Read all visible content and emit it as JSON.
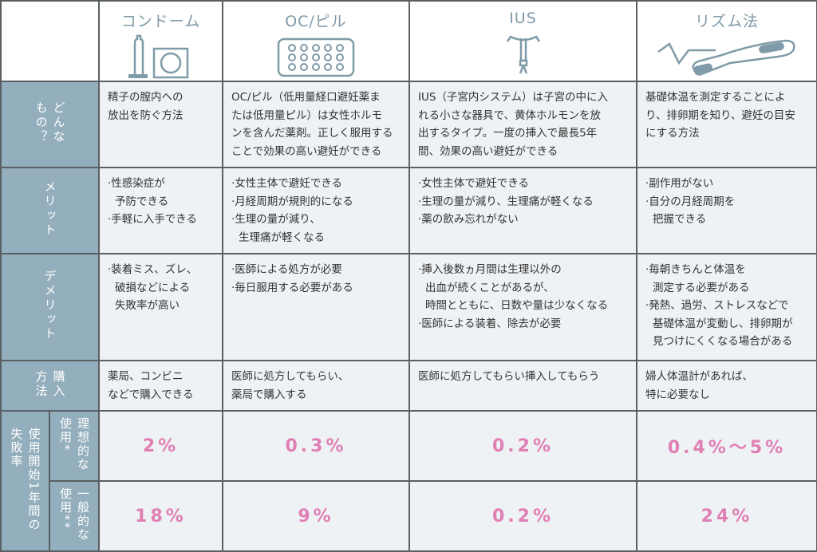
{
  "methods": [
    {
      "name": "コンドーム",
      "icon": "condom-icon"
    },
    {
      "name": "OC/ピル",
      "icon": "pill-pack-icon"
    },
    {
      "name": "IUS",
      "icon": "ius-device-icon"
    },
    {
      "name": "リズム法",
      "icon": "thermometer-icon"
    }
  ],
  "rows": {
    "what": {
      "label": [
        "どんな",
        "もの？"
      ],
      "cells": [
        [
          "精子の膣内への",
          "放出を防ぐ方法"
        ],
        [
          "OC/ピル（低用量経口避妊薬ま",
          "たは低用量ピル）は女性ホルモ",
          "ンを含んだ薬剤。正しく服用する",
          "ことで効果の高い避妊ができる"
        ],
        [
          "IUS（子宮内システム）は子宮の中に入",
          "れる小さな器具で、黄体ホルモンを放",
          "出するタイプ。一度の挿入で最長5年",
          "間、効果の高い避妊ができる"
        ],
        [
          "基礎体温を測定することによ",
          "り、排卵期を知り、避妊の目安",
          "にする方法"
        ]
      ]
    },
    "merit": {
      "label": [
        "メリット"
      ],
      "cells": [
        [
          "·性感染症が",
          " 予防できる",
          "·手軽に入手できる"
        ],
        [
          "·女性主体で避妊できる",
          "·月経周期が規則的になる",
          "·生理の量が減り、",
          " 生理痛が軽くなる"
        ],
        [
          "·女性主体で避妊できる",
          "·生理の量が減り、生理痛が軽くなる",
          "·薬の飲み忘れがない"
        ],
        [
          "·副作用がない",
          "·自分の月経周期を",
          " 把握できる"
        ]
      ]
    },
    "demerit": {
      "label": [
        "デメリット"
      ],
      "cells": [
        [
          "·装着ミス、ズレ、",
          " 破損などによる",
          " 失敗率が高い"
        ],
        [
          "·医師による処方が必要",
          "·毎日服用する必要がある"
        ],
        [
          "·挿入後数ヵ月間は生理以外の",
          " 出血が続くことがあるが、",
          " 時間とともに、日数や量は少なくなる",
          "·医師による装着、除去が必要"
        ],
        [
          "·毎朝きちんと体温を",
          " 測定する必要がある",
          "·発熱、過労、ストレスなどで",
          " 基礎体温が変動し、排卵期が",
          " 見つけにくくなる場合がある"
        ]
      ]
    },
    "purchase": {
      "label": [
        "購入",
        "方法"
      ],
      "cells": [
        [
          "薬局、コンビニ",
          "などで購入できる"
        ],
        [
          "医師に処方してもらい、",
          "薬局で購入する"
        ],
        [
          "医師に処方してもらい挿入してもらう"
        ],
        [
          "婦人体温計があれば、",
          "特に必要なし"
        ]
      ]
    }
  },
  "failure": {
    "label": [
      "使用開始1年間の",
      "失敗率"
    ],
    "ideal": {
      "label": [
        "理想的な",
        "使用*"
      ],
      "values": [
        "2%",
        "0.3%",
        "0.2%",
        "0.4%〜5%"
      ]
    },
    "typical": {
      "label": [
        "一般的な",
        "使用**"
      ],
      "values": [
        "18%",
        "9%",
        "0.2%",
        "24%"
      ]
    }
  },
  "colors": {
    "label_bg": "#93aebd",
    "cell_bg": "#eef2f5",
    "rate_text": "#e07fb4",
    "icon": "#7f9aa8"
  }
}
